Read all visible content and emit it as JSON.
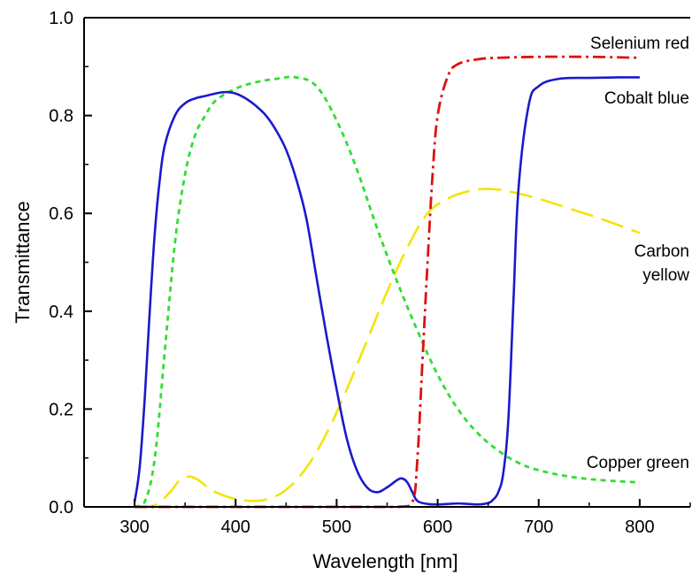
{
  "chart_data": {
    "type": "line",
    "xlabel": "Wavelength [nm]",
    "ylabel": "Transmittance",
    "xlim": [
      250,
      850
    ],
    "ylim": [
      0,
      1
    ],
    "xticks": [
      300,
      400,
      500,
      600,
      700,
      800
    ],
    "yticks": [
      0,
      0.2,
      0.4,
      0.6,
      0.8,
      1.0
    ],
    "ytick_labels": [
      "0.0",
      "0.2",
      "0.4",
      "0.6",
      "0.8",
      "1.0"
    ],
    "grid": false,
    "legend": "none",
    "series": [
      {
        "name": "Selenium red",
        "label_lines": [
          "Selenium red"
        ],
        "color": "#dd1111",
        "dash": "14 5 3 5",
        "x": [
          300,
          400,
          500,
          560,
          575,
          580,
          585,
          590,
          595,
          600,
          610,
          620,
          640,
          660,
          700,
          750,
          800
        ],
        "y": [
          0,
          0,
          0,
          0.0,
          0.01,
          0.1,
          0.3,
          0.5,
          0.68,
          0.8,
          0.88,
          0.905,
          0.915,
          0.918,
          0.92,
          0.92,
          0.918
        ]
      },
      {
        "name": "Cobalt blue",
        "label_lines": [
          "Cobalt blue"
        ],
        "color": "#1a1acc",
        "dash": "",
        "x": [
          300,
          305,
          310,
          315,
          320,
          325,
          330,
          340,
          350,
          360,
          370,
          380,
          390,
          400,
          410,
          420,
          430,
          440,
          450,
          460,
          470,
          480,
          490,
          500,
          510,
          520,
          530,
          540,
          550,
          560,
          565,
          570,
          575,
          580,
          590,
          600,
          610,
          620,
          630,
          640,
          650,
          655,
          660,
          665,
          670,
          675,
          680,
          690,
          700,
          720,
          750,
          780,
          800
        ],
        "y": [
          0.01,
          0.08,
          0.22,
          0.4,
          0.56,
          0.67,
          0.74,
          0.8,
          0.825,
          0.835,
          0.84,
          0.845,
          0.848,
          0.845,
          0.835,
          0.82,
          0.8,
          0.77,
          0.73,
          0.67,
          0.59,
          0.47,
          0.35,
          0.24,
          0.14,
          0.075,
          0.04,
          0.03,
          0.04,
          0.055,
          0.058,
          0.05,
          0.03,
          0.012,
          0.006,
          0.005,
          0.006,
          0.007,
          0.006,
          0.005,
          0.008,
          0.015,
          0.03,
          0.07,
          0.18,
          0.42,
          0.65,
          0.82,
          0.86,
          0.875,
          0.877,
          0.878,
          0.878
        ]
      },
      {
        "name": "Carbon yellow",
        "label_lines": [
          "Carbon",
          "yellow"
        ],
        "color": "#f2e40a",
        "dash": "26 10",
        "x": [
          300,
          320,
          335,
          345,
          355,
          365,
          375,
          390,
          410,
          430,
          450,
          470,
          490,
          510,
          530,
          550,
          570,
          590,
          610,
          630,
          650,
          670,
          700,
          730,
          760,
          800
        ],
        "y": [
          0,
          0.003,
          0.03,
          0.055,
          0.062,
          0.052,
          0.036,
          0.022,
          0.013,
          0.015,
          0.035,
          0.08,
          0.15,
          0.24,
          0.34,
          0.44,
          0.53,
          0.6,
          0.63,
          0.645,
          0.65,
          0.645,
          0.63,
          0.61,
          0.59,
          0.56
        ]
      },
      {
        "name": "Copper green",
        "label_lines": [
          "Copper green"
        ],
        "color": "#33dd33",
        "dash": "6 5",
        "x": [
          300,
          310,
          320,
          330,
          340,
          350,
          360,
          370,
          380,
          400,
          420,
          440,
          460,
          480,
          500,
          520,
          540,
          560,
          580,
          600,
          620,
          640,
          660,
          680,
          700,
          730,
          760,
          800
        ],
        "y": [
          0,
          0.01,
          0.1,
          0.32,
          0.54,
          0.68,
          0.76,
          0.8,
          0.83,
          0.855,
          0.868,
          0.875,
          0.878,
          0.86,
          0.79,
          0.69,
          0.57,
          0.46,
          0.36,
          0.27,
          0.2,
          0.15,
          0.115,
          0.09,
          0.075,
          0.062,
          0.055,
          0.05
        ]
      }
    ]
  }
}
